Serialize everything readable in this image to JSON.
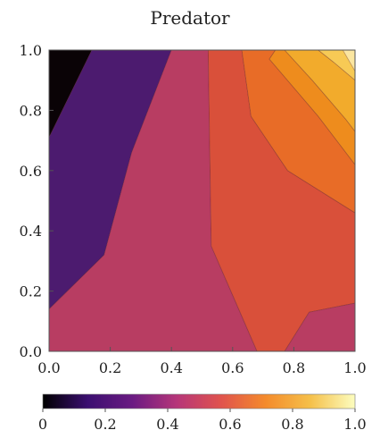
{
  "chart_data": {
    "type": "contour",
    "title": "Predator",
    "xlabel": "",
    "ylabel": "",
    "xlim": [
      0.0,
      1.0
    ],
    "ylim": [
      0.0,
      1.0
    ],
    "x_ticks": [
      "0.0",
      "0.2",
      "0.4",
      "0.6",
      "0.8",
      "1.0"
    ],
    "y_ticks": [
      "0.0",
      "0.2",
      "0.4",
      "0.6",
      "0.8",
      "1.0"
    ],
    "colorbar": {
      "range": [
        0,
        1.0
      ],
      "tick_values": [
        0,
        0.2,
        0.4,
        0.6,
        0.8,
        1.0
      ],
      "tick_labels": [
        "0",
        "0.2",
        "0.4",
        "0.6",
        "0.8",
        "1.0"
      ],
      "colormap": "inferno",
      "stops": [
        "#000000",
        "#3b0f70",
        "#6a1b82",
        "#b63679",
        "#e0534d",
        "#f48b2c",
        "#f5c04a",
        "#fcfdbf"
      ]
    },
    "levels": [
      {
        "range": "0.0–0.1",
        "color": "#0a0306",
        "boundary": [
          [
            0.0,
            1.0
          ],
          [
            0.14,
            1.0
          ],
          [
            0.0,
            0.71
          ]
        ]
      },
      {
        "range": "0.1–0.2",
        "color": "#4c1b6f",
        "boundary": [
          [
            0.0,
            0.14
          ],
          [
            0.18,
            0.32
          ],
          [
            0.27,
            0.66
          ],
          [
            0.4,
            1.0
          ],
          [
            0.14,
            1.0
          ],
          [
            0.0,
            0.71
          ]
        ]
      },
      {
        "range": "0.3–0.4",
        "color": "#b83d62",
        "boundary": [
          [
            0.0,
            0.0
          ],
          [
            0.68,
            0.0
          ],
          [
            0.53,
            0.35
          ],
          [
            0.52,
            1.0
          ],
          [
            0.4,
            1.0
          ],
          [
            0.27,
            0.66
          ],
          [
            0.18,
            0.32
          ],
          [
            0.0,
            0.14
          ]
        ]
      },
      {
        "range": "0.4–0.5",
        "color": "#d9503a",
        "boundary": [
          [
            0.68,
            0.0
          ],
          [
            0.77,
            0.0
          ],
          [
            0.85,
            0.13
          ],
          [
            1.0,
            0.16
          ],
          [
            1.0,
            0.46
          ],
          [
            0.78,
            0.6
          ],
          [
            0.66,
            0.78
          ],
          [
            0.63,
            1.0
          ],
          [
            0.52,
            1.0
          ],
          [
            0.53,
            0.35
          ]
        ]
      },
      {
        "range": "0.5–0.6",
        "color": "#e86c27",
        "boundary": [
          [
            0.63,
            1.0
          ],
          [
            0.66,
            0.78
          ],
          [
            0.78,
            0.6
          ],
          [
            1.0,
            0.46
          ],
          [
            1.0,
            0.62
          ],
          [
            0.88,
            0.78
          ],
          [
            0.72,
            0.97
          ],
          [
            0.74,
            1.0
          ]
        ]
      },
      {
        "range": "0.6–0.7",
        "color": "#ee8c1d",
        "boundary": [
          [
            0.74,
            1.0
          ],
          [
            0.72,
            0.97
          ],
          [
            0.88,
            0.78
          ],
          [
            1.0,
            0.62
          ],
          [
            1.0,
            0.73
          ],
          [
            0.97,
            0.77
          ],
          [
            0.86,
            0.9
          ],
          [
            0.77,
            1.0
          ]
        ]
      },
      {
        "range": "0.7–0.8",
        "color": "#f2ab2c",
        "boundary": [
          [
            0.77,
            1.0
          ],
          [
            0.86,
            0.9
          ],
          [
            0.97,
            0.77
          ],
          [
            1.0,
            0.73
          ],
          [
            1.0,
            0.9
          ],
          [
            0.93,
            0.96
          ],
          [
            0.88,
            1.0
          ]
        ]
      },
      {
        "range": "0.8–0.9",
        "color": "#f7ca55",
        "boundary": [
          [
            0.88,
            1.0
          ],
          [
            0.93,
            0.96
          ],
          [
            1.0,
            0.9
          ],
          [
            1.0,
            1.0
          ]
        ]
      },
      {
        "range": "0.9–1.0",
        "color": "#fbe6a0",
        "boundary": [
          [
            0.96,
            1.0
          ],
          [
            1.0,
            0.93
          ],
          [
            1.0,
            1.0
          ]
        ]
      },
      {
        "range": "0.3–0.4",
        "color": "#b83d62",
        "boundary": [
          [
            0.77,
            0.0
          ],
          [
            1.0,
            0.0
          ],
          [
            1.0,
            0.16
          ],
          [
            0.85,
            0.13
          ]
        ]
      }
    ]
  }
}
